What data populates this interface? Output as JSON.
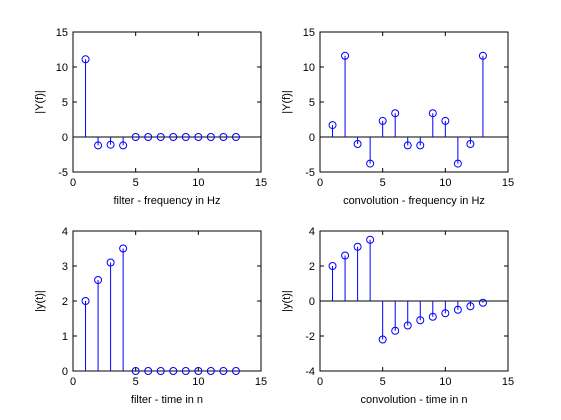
{
  "colors": {
    "stem": "#0000ff",
    "axes": "#000000",
    "background": "#ffffff"
  },
  "chart_data": [
    {
      "type": "stem",
      "xlabel": "filter - frequency in Hz",
      "ylabel": "|Y(f)|",
      "xlim": [
        0,
        15
      ],
      "ylim": [
        -5,
        15
      ],
      "xticks": [
        0,
        5,
        10,
        15
      ],
      "yticks": [
        -5,
        0,
        5,
        10,
        15
      ],
      "x": [
        1,
        2,
        3,
        4,
        5,
        6,
        7,
        8,
        9,
        10,
        11,
        12,
        13
      ],
      "values": [
        11.1,
        -1.2,
        -1.1,
        -1.2,
        0,
        0,
        0,
        0,
        0,
        0,
        0,
        0,
        0
      ]
    },
    {
      "type": "stem",
      "xlabel": "convolution - frequency in Hz",
      "ylabel": "|Y(f)|",
      "xlim": [
        0,
        15
      ],
      "ylim": [
        -5,
        15
      ],
      "xticks": [
        0,
        5,
        10,
        15
      ],
      "yticks": [
        -5,
        0,
        5,
        10,
        15
      ],
      "x": [
        1,
        2,
        3,
        4,
        5,
        6,
        7,
        8,
        9,
        10,
        11,
        12,
        13
      ],
      "values": [
        1.7,
        11.6,
        -1.0,
        -3.8,
        2.3,
        3.4,
        -1.2,
        -1.2,
        3.4,
        2.3,
        -3.8,
        -1.0,
        11.6
      ]
    },
    {
      "type": "stem",
      "xlabel": "filter - time in n",
      "ylabel": "|y(t)|",
      "xlim": [
        0,
        15
      ],
      "ylim": [
        0,
        4
      ],
      "xticks": [
        0,
        5,
        10,
        15
      ],
      "yticks": [
        0,
        1,
        2,
        3,
        4
      ],
      "x": [
        1,
        2,
        3,
        4,
        5,
        6,
        7,
        8,
        9,
        10,
        11,
        12,
        13
      ],
      "values": [
        2.0,
        2.6,
        3.1,
        3.5,
        0,
        0,
        0,
        0,
        0,
        0,
        0,
        0,
        0
      ]
    },
    {
      "type": "stem",
      "xlabel": "convolution - time in n",
      "ylabel": "|y(t)|",
      "xlim": [
        0,
        15
      ],
      "ylim": [
        -4,
        4
      ],
      "xticks": [
        0,
        5,
        10,
        15
      ],
      "yticks": [
        -4,
        -2,
        0,
        2,
        4
      ],
      "x": [
        1,
        2,
        3,
        4,
        5,
        6,
        7,
        8,
        9,
        10,
        11,
        12,
        13
      ],
      "values": [
        2.0,
        2.6,
        3.1,
        3.5,
        -2.2,
        -1.7,
        -1.4,
        -1.1,
        -0.9,
        -0.7,
        -0.5,
        -0.3,
        -0.1
      ]
    }
  ]
}
